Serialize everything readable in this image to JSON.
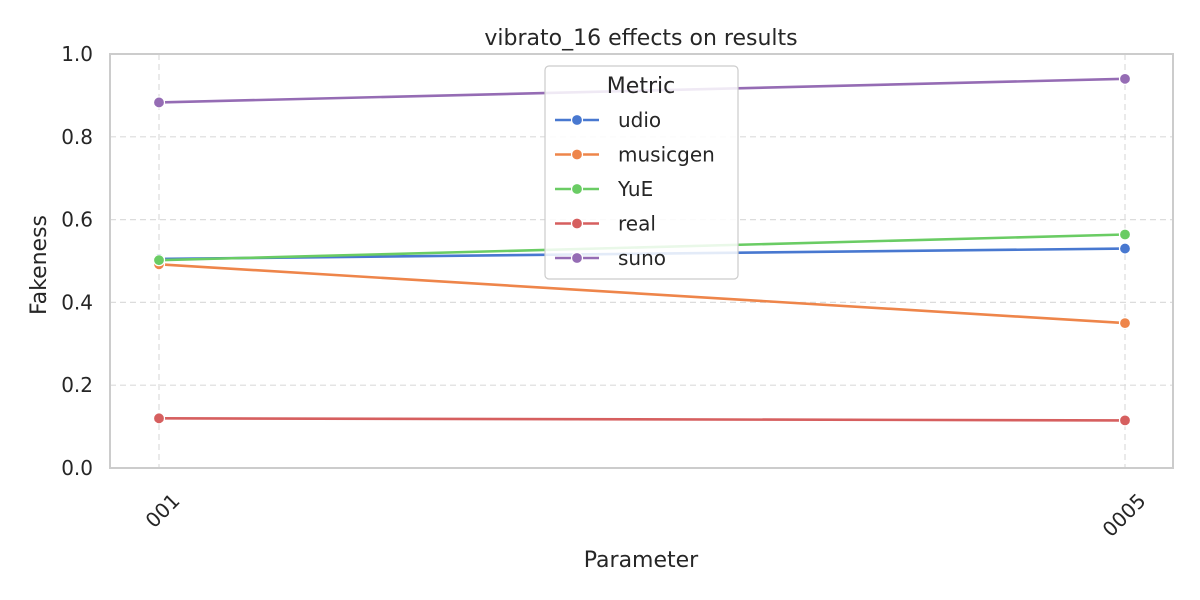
{
  "chart_data": {
    "type": "line",
    "title": "vibrato_16 effects on results",
    "xlabel": "Parameter",
    "ylabel": "Fakeness",
    "categories": [
      "001",
      "0005"
    ],
    "ylim": [
      0.0,
      1.0
    ],
    "yticks": [
      0.0,
      0.2,
      0.4,
      0.6,
      0.8,
      1.0
    ],
    "ytick_labels": [
      "0.0",
      "0.2",
      "0.4",
      "0.6",
      "0.8",
      "1.0"
    ],
    "grid": true,
    "legend": {
      "title": "Metric",
      "placement": "top-center"
    },
    "series": [
      {
        "name": "udio",
        "color": "#4878d0",
        "values": [
          0.505,
          0.53
        ]
      },
      {
        "name": "musicgen",
        "color": "#ee854a",
        "values": [
          0.492,
          0.35
        ]
      },
      {
        "name": "YuE",
        "color": "#6acc64",
        "values": [
          0.502,
          0.564
        ]
      },
      {
        "name": "real",
        "color": "#d65f5f",
        "values": [
          0.12,
          0.115
        ]
      },
      {
        "name": "suno",
        "color": "#956cb4",
        "values": [
          0.883,
          0.94
        ]
      }
    ]
  }
}
